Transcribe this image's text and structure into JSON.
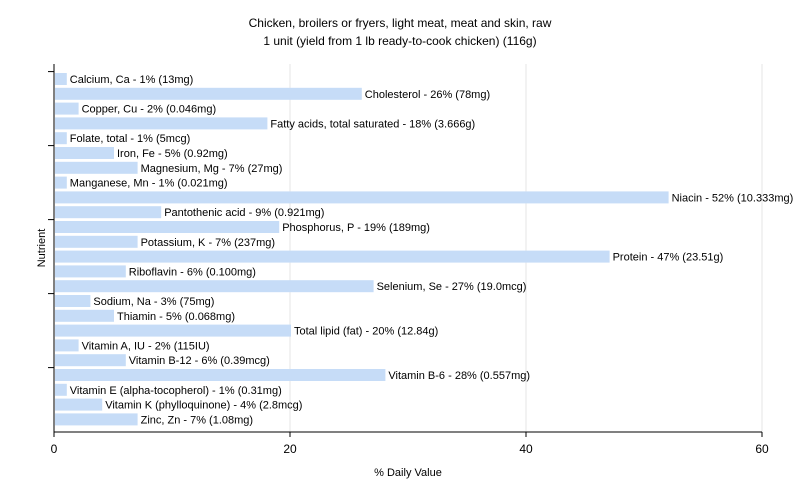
{
  "chart_data": {
    "type": "bar",
    "orientation": "horizontal",
    "title": "Chicken, broilers or fryers, light meat, meat and skin, raw",
    "subtitle": "1 unit (yield from 1 lb ready-to-cook chicken) (116g)",
    "xlabel": "% Daily Value",
    "ylabel": "Nutrient",
    "xlim": [
      0,
      60
    ],
    "xticks": [
      "0",
      "20",
      "40",
      "60"
    ],
    "grid": true,
    "bar_color": "#c6dcf7",
    "categories": [
      "Calcium, Ca",
      "Cholesterol",
      "Copper, Cu",
      "Fatty acids, total saturated",
      "Folate, total",
      "Iron, Fe",
      "Magnesium, Mg",
      "Manganese, Mn",
      "Niacin",
      "Pantothenic acid",
      "Phosphorus, P",
      "Potassium, K",
      "Protein",
      "Riboflavin",
      "Selenium, Se",
      "Sodium, Na",
      "Thiamin",
      "Total lipid (fat)",
      "Vitamin A, IU",
      "Vitamin B-12",
      "Vitamin B-6",
      "Vitamin E (alpha-tocopherol)",
      "Vitamin K (phylloquinone)",
      "Zinc, Zn"
    ],
    "values": [
      1,
      26,
      2,
      18,
      1,
      5,
      7,
      1,
      52,
      9,
      19,
      7,
      47,
      6,
      27,
      3,
      5,
      20,
      2,
      6,
      28,
      1,
      4,
      7
    ],
    "labels": [
      "Calcium, Ca - 1% (13mg)",
      "Cholesterol - 26% (78mg)",
      "Copper, Cu - 2% (0.046mg)",
      "Fatty acids, total saturated - 18% (3.666g)",
      "Folate, total - 1% (5mcg)",
      "Iron, Fe - 5% (0.92mg)",
      "Magnesium, Mg - 7% (27mg)",
      "Manganese, Mn - 1% (0.021mg)",
      "Niacin - 52% (10.333mg)",
      "Pantothenic acid - 9% (0.921mg)",
      "Phosphorus, P - 19% (189mg)",
      "Potassium, K - 7% (237mg)",
      "Protein - 47% (23.51g)",
      "Riboflavin - 6% (0.100mg)",
      "Selenium, Se - 27% (19.0mcg)",
      "Sodium, Na - 3% (75mg)",
      "Thiamin - 5% (0.068mg)",
      "Total lipid (fat) - 20% (12.84g)",
      "Vitamin A, IU - 2% (115IU)",
      "Vitamin B-12 - 6% (0.39mcg)",
      "Vitamin B-6 - 28% (0.557mg)",
      "Vitamin E (alpha-tocopherol) - 1% (0.31mg)",
      "Vitamin K (phylloquinone) - 4% (2.8mcg)",
      "Zinc, Zn - 7% (1.08mg)"
    ]
  }
}
